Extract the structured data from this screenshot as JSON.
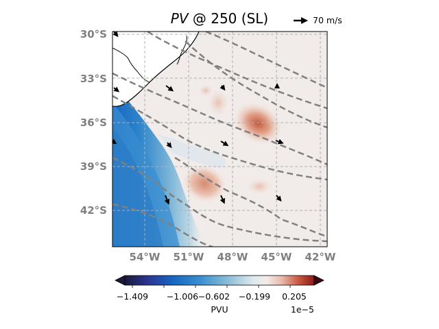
{
  "title": {
    "italic": "PV",
    "rest": " @ 250 (SL)"
  },
  "quiver_key": {
    "label": "70 m/s"
  },
  "map": {
    "lat_labels": [
      "30°S",
      "33°S",
      "36°S",
      "39°S",
      "42°S"
    ],
    "lon_labels": [
      "54°W",
      "51°W",
      "48°W",
      "45°W",
      "42°W"
    ],
    "lat_range": [
      -44.5,
      -30
    ],
    "lon_range": [
      -56.5,
      -41.5
    ],
    "gridlines": true
  },
  "colorbar": {
    "ticks": [
      "−1.409",
      "−1.006",
      "−0.602",
      "−0.199",
      "0.205"
    ],
    "label": "PVU",
    "exponent": "1e−5",
    "colors": [
      "#1b1a3a",
      "#2a3590",
      "#1565c0",
      "#3b8fd0",
      "#8fbfd8",
      "#dfe9ee",
      "#f2ece8",
      "#e8b8a8",
      "#c8553e",
      "#8c1a1a",
      "#3a0a10"
    ]
  },
  "colors": {
    "land": "#ffffff",
    "contour": "#808080",
    "grid": "#b0b0b0"
  }
}
